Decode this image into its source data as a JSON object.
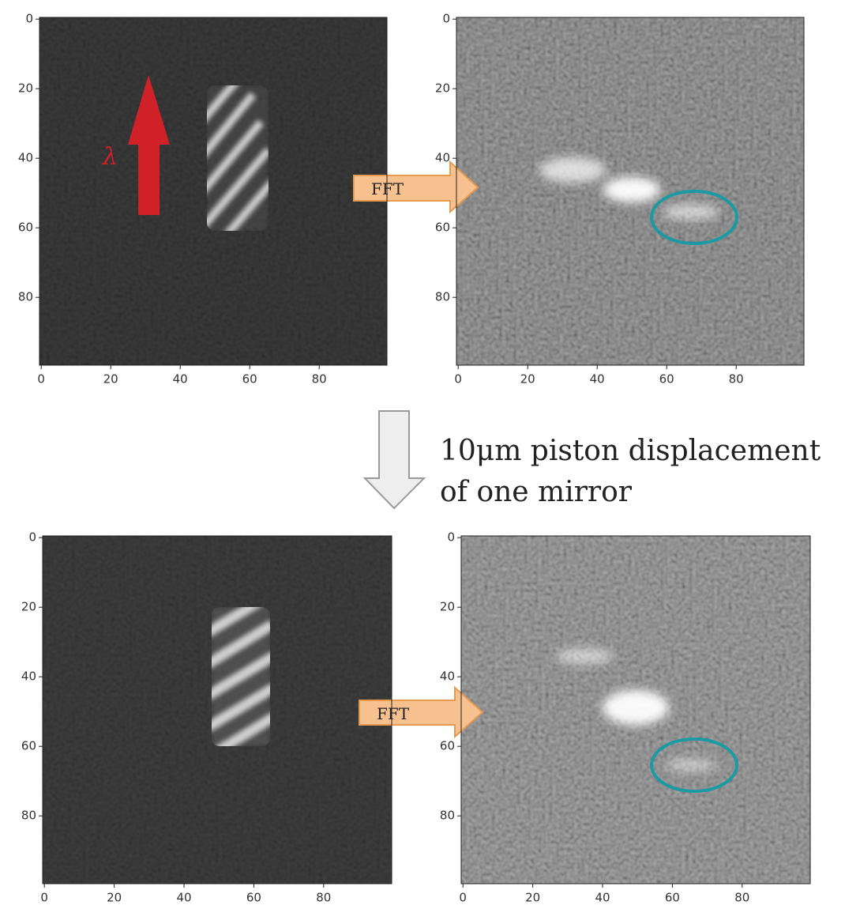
{
  "panels": [
    {
      "xlim": [
        -0.5,
        99.5
      ],
      "ylim": [
        -0.5,
        99.5
      ],
      "xticks": [
        0,
        20,
        40,
        60,
        80
      ],
      "yticks": [
        0,
        20,
        40,
        60,
        80
      ]
    },
    {
      "xlim": [
        -0.5,
        99.5
      ],
      "ylim": [
        -0.5,
        99.5
      ],
      "xticks": [
        0,
        20,
        40,
        60,
        80
      ],
      "yticks": [
        0,
        20,
        40,
        60,
        80
      ]
    },
    {
      "xlim": [
        -0.5,
        99.5
      ],
      "ylim": [
        -0.5,
        99.5
      ],
      "xticks": [
        0,
        20,
        40,
        60,
        80
      ],
      "yticks": [
        0,
        20,
        40,
        60,
        80
      ]
    },
    {
      "xlim": [
        -0.5,
        99.5
      ],
      "ylim": [
        -0.5,
        99.5
      ],
      "xticks": [
        0,
        20,
        40,
        60,
        80
      ],
      "yticks": [
        0,
        20,
        40,
        60,
        80
      ]
    }
  ],
  "annotations": {
    "wavelength": "λ",
    "fft_top": "FFT",
    "fft_bottom": "FFT",
    "caption": [
      "10μm piston displacement",
      "of one mirror"
    ]
  }
}
